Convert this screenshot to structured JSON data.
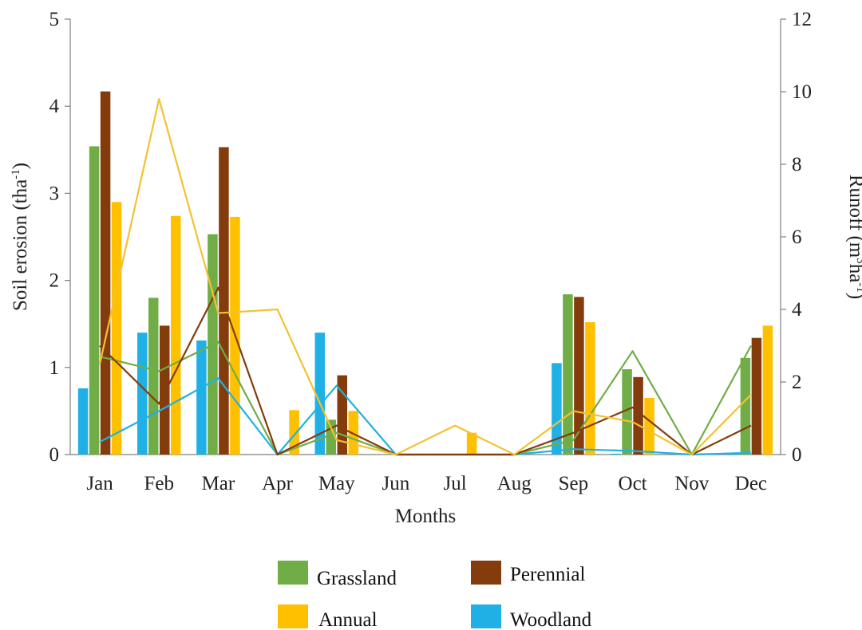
{
  "chart_data": {
    "type": "bar",
    "categories": [
      "Jan",
      "Feb",
      "Mar",
      "Apr",
      "May",
      "Jun",
      "Jul",
      "Aug",
      "Sep",
      "Oct",
      "Nov",
      "Dec"
    ],
    "xlabel": "Months",
    "ylabel": "Soil erosion (tha-1)",
    "ylabel_main": "Soil erosion (tha",
    "ylabel_sup": "-1",
    "ylabel_end": ")",
    "y2label": "Runoff (m3ha-1)",
    "y2label_parts": [
      "Runoff (m",
      "3",
      "ha",
      "-1",
      ")"
    ],
    "ylim": [
      0,
      5
    ],
    "y2lim": [
      0,
      12
    ],
    "yticks": [
      "0",
      "1",
      "2",
      "3",
      "4",
      "5"
    ],
    "y2ticks": [
      "0",
      "2",
      "4",
      "6",
      "8",
      "10",
      "12"
    ],
    "bar_series": [
      {
        "name": "Woodland",
        "color": "#1FB1E6",
        "values": [
          0.76,
          1.4,
          1.31,
          0,
          1.4,
          0,
          0,
          0,
          1.05,
          0.01,
          0,
          0.02
        ]
      },
      {
        "name": "Grassland",
        "color": "#70AD47",
        "values": [
          3.54,
          1.8,
          2.53,
          0,
          0.4,
          0,
          0,
          0,
          1.84,
          0.98,
          0,
          1.11
        ]
      },
      {
        "name": "Perennial",
        "color": "#843C0C",
        "values": [
          4.17,
          1.48,
          3.53,
          0,
          0.91,
          0,
          0,
          0,
          1.81,
          0.89,
          0,
          1.34
        ]
      },
      {
        "name": "Annual",
        "color": "#FFC000",
        "values": [
          2.9,
          2.74,
          2.73,
          0.51,
          0.5,
          0,
          0.25,
          0,
          1.52,
          0.65,
          0,
          1.48
        ]
      }
    ],
    "line_series": [
      {
        "name": "Woodland",
        "color": "#1FB1E6",
        "values": [
          0.35,
          1.2,
          2.1,
          0,
          1.9,
          0,
          0,
          0,
          0.15,
          0.1,
          0,
          0.05
        ]
      },
      {
        "name": "Grassland",
        "color": "#70AD47",
        "values": [
          2.7,
          2.3,
          3.1,
          0,
          0.6,
          0,
          0,
          0,
          0.4,
          2.85,
          0,
          3.0
        ]
      },
      {
        "name": "Perennial",
        "color": "#843C0C",
        "values": [
          3.0,
          1.4,
          4.6,
          0,
          0.8,
          0,
          0,
          0,
          0.6,
          1.3,
          0,
          0.8
        ]
      },
      {
        "name": "Annual",
        "color": "#F2C230",
        "values": [
          2.5,
          9.8,
          3.9,
          4.0,
          0.4,
          0,
          0.8,
          0,
          1.2,
          0.9,
          0,
          1.65
        ]
      }
    ],
    "legend": [
      {
        "name": "Grassland",
        "color": "#70AD47"
      },
      {
        "name": "Perennial",
        "color": "#843C0C"
      },
      {
        "name": "Annual",
        "color": "#FFC000"
      },
      {
        "name": "Woodland",
        "color": "#1FB1E6"
      }
    ]
  }
}
